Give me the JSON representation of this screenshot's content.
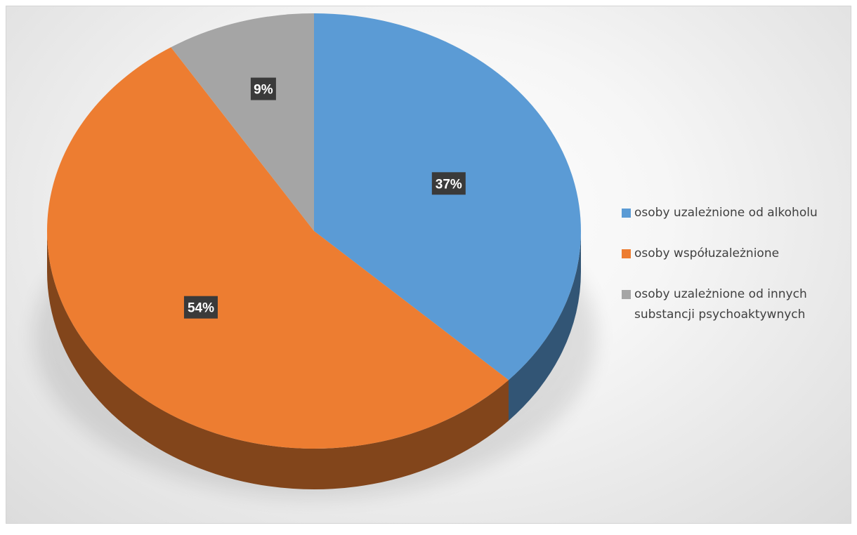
{
  "chart_data": {
    "type": "pie",
    "title": "",
    "categories": [
      "osoby uzależnione od alkoholu",
      "osoby współuzależnione",
      "osoby uzależnione od innych substancji psychoaktywnych"
    ],
    "values": [
      37,
      54,
      9
    ],
    "labels": [
      "37%",
      "54%",
      "9%"
    ],
    "colors": [
      "#5b9bd5",
      "#ed7d31",
      "#a5a5a5"
    ],
    "legend_position": "right",
    "style": "3d"
  },
  "legend": {
    "items": [
      {
        "label": "osoby uzależnione od alkoholu",
        "color": "#5b9bd5"
      },
      {
        "label": "osoby współuzależnione",
        "color": "#ed7d31"
      },
      {
        "label": "osoby uzależnione od innych substancji psychoaktywnych",
        "color": "#a5a5a5"
      }
    ]
  }
}
